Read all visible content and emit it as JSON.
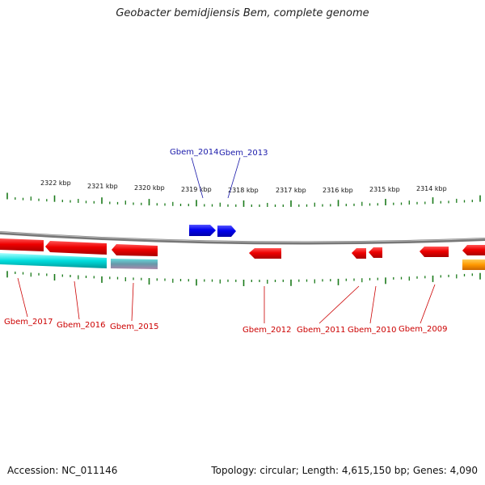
{
  "title": "Geobacter bemidjiensis Bem, complete genome",
  "accession": "Accession: NC_011146",
  "summary": "Topology: circular; Length: 4,615,150 bp; Genes: 4,090",
  "colors": {
    "forward_gene": "#0000ee",
    "reverse_gene": "#ee0000",
    "backbone": "#888888",
    "tick": "#1a7a1a",
    "label_forward": "#1a1aaa",
    "label_reverse": "#cc0000",
    "cyan_feature": "#00dddd",
    "orange_feature": "#ff9900"
  },
  "kbp_labels": [
    "2322 kbp",
    "2321 kbp",
    "2320 kbp",
    "2319 kbp",
    "2318 kbp",
    "2317 kbp",
    "2316 kbp",
    "2315 kbp",
    "2314 kbp"
  ],
  "forward_genes": [
    "Gbem_2014",
    "Gbem_2013"
  ],
  "reverse_genes": [
    "Gbem_2017",
    "Gbem_2016",
    "Gbem_2015",
    "Gbem_2012",
    "Gbem_2011",
    "Gbem_2010",
    "Gbem_2009"
  ]
}
